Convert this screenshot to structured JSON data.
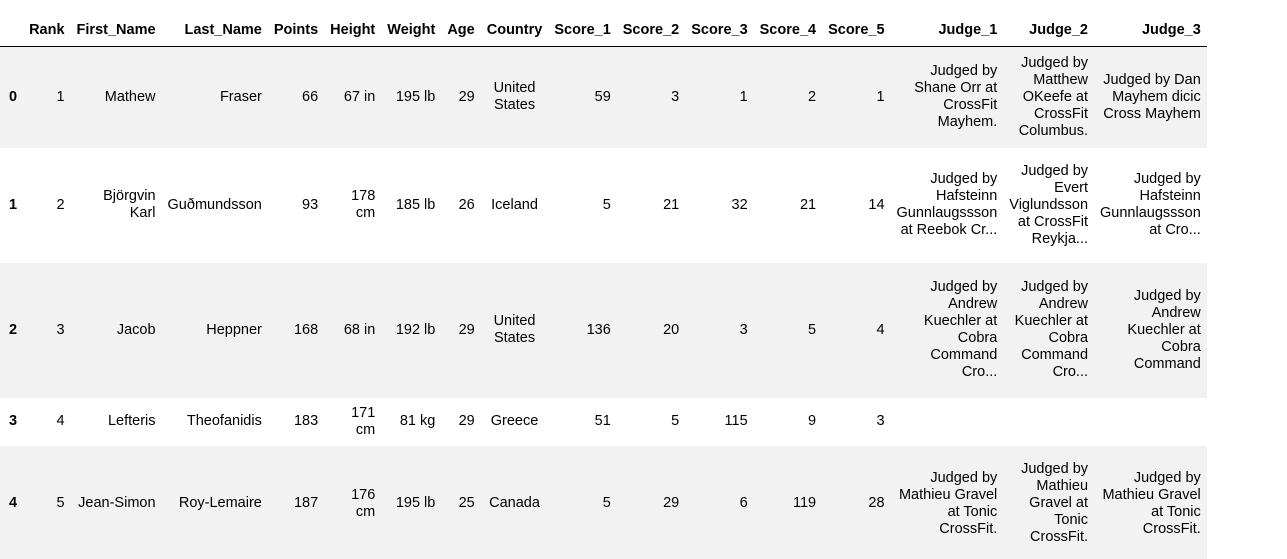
{
  "table": {
    "headers": [
      "",
      "Rank",
      "First_Name",
      "Last_Name",
      "Points",
      "Height",
      "Weight",
      "Age",
      "Country",
      "Score_1",
      "Score_2",
      "Score_3",
      "Score_4",
      "Score_5",
      "Judge_1",
      "Judge_2",
      "Judge_3"
    ],
    "rows": [
      {
        "index": "0",
        "rank": "1",
        "first": "Mathew",
        "last": "Fraser",
        "points": "66",
        "height": "67 in",
        "weight": "195 lb",
        "age": "29",
        "country": "United States",
        "s1": "59",
        "s2": "3",
        "s3": "1",
        "s4": "2",
        "s5": "1",
        "j1": "Judged by Shane Orr at CrossFit Mayhem.",
        "j2": "Judged by Matthew OKeefe at CrossFit Columbus.",
        "j3": "Judged by Dan Mayhem dicic Cross Mayhem"
      },
      {
        "index": "1",
        "rank": "2",
        "first": "Björgvin Karl",
        "last": "Guðmundsson",
        "points": "93",
        "height": "178 cm",
        "weight": "185 lb",
        "age": "26",
        "country": "Iceland",
        "s1": "5",
        "s2": "21",
        "s3": "32",
        "s4": "21",
        "s5": "14",
        "j1": "Judged by Hafsteinn Gunnlaugssson at Reebok Cr...",
        "j2": "Judged by Evert Viglundsson at CrossFit Reykja...",
        "j3": "Judged by Hafsteinn Gunnlaugssson at Cro..."
      },
      {
        "index": "2",
        "rank": "3",
        "first": "Jacob",
        "last": "Heppner",
        "points": "168",
        "height": "68 in",
        "weight": "192 lb",
        "age": "29",
        "country": "United States",
        "s1": "136",
        "s2": "20",
        "s3": "3",
        "s4": "5",
        "s5": "4",
        "j1": "Judged by Andrew Kuechler at Cobra Command Cro...",
        "j2": "Judged by Andrew Kuechler at Cobra Command Cro...",
        "j3": "Judged by Andrew Kuechler at Cobra Command"
      },
      {
        "index": "3",
        "rank": "4",
        "first": "Lefteris",
        "last": "Theofanidis",
        "points": "183",
        "height": "171 cm",
        "weight": "81 kg",
        "age": "29",
        "country": "Greece",
        "s1": "51",
        "s2": "5",
        "s3": "115",
        "s4": "9",
        "s5": "3",
        "j1": "",
        "j2": "",
        "j3": ""
      },
      {
        "index": "4",
        "rank": "5",
        "first": "Jean-Simon",
        "last": "Roy-Lemaire",
        "points": "187",
        "height": "176 cm",
        "weight": "195 lb",
        "age": "25",
        "country": "Canada",
        "s1": "5",
        "s2": "29",
        "s3": "6",
        "s4": "119",
        "s5": "28",
        "j1": "Judged by Mathieu Gravel at Tonic CrossFit.",
        "j2": "Judged by Mathieu Gravel at Tonic CrossFit.",
        "j3": "Judged by Mathieu Gravel at Tonic CrossFit."
      }
    ]
  }
}
